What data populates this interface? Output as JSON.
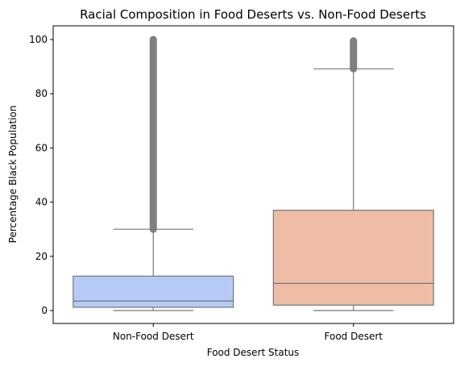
{
  "chart_data": {
    "type": "box",
    "title": "Racial Composition in Food Deserts vs. Non-Food Deserts",
    "xlabel": "Food Desert Status",
    "ylabel": "Percentage Black Population",
    "ylim": [
      -5,
      105
    ],
    "yticks": [
      0,
      20,
      40,
      60,
      80,
      100
    ],
    "grid": false,
    "categories": [
      "Non-Food Desert",
      "Food Desert"
    ],
    "boxes": [
      {
        "category": "Non-Food Desert",
        "color": "#b5cbf5",
        "whisker_low": 0,
        "q1": 1.2,
        "median": 3.5,
        "q3": 12.7,
        "whisker_high": 30,
        "outliers_range": [
          30,
          100
        ]
      },
      {
        "category": "Food Desert",
        "color": "#efbca6",
        "whisker_low": 0,
        "q1": 2,
        "median": 10,
        "q3": 37,
        "whisker_high": 89.2,
        "outliers_range": [
          89.2,
          99.5
        ]
      }
    ],
    "colors": {
      "edge": "#777777",
      "outlier": "#808080"
    }
  }
}
